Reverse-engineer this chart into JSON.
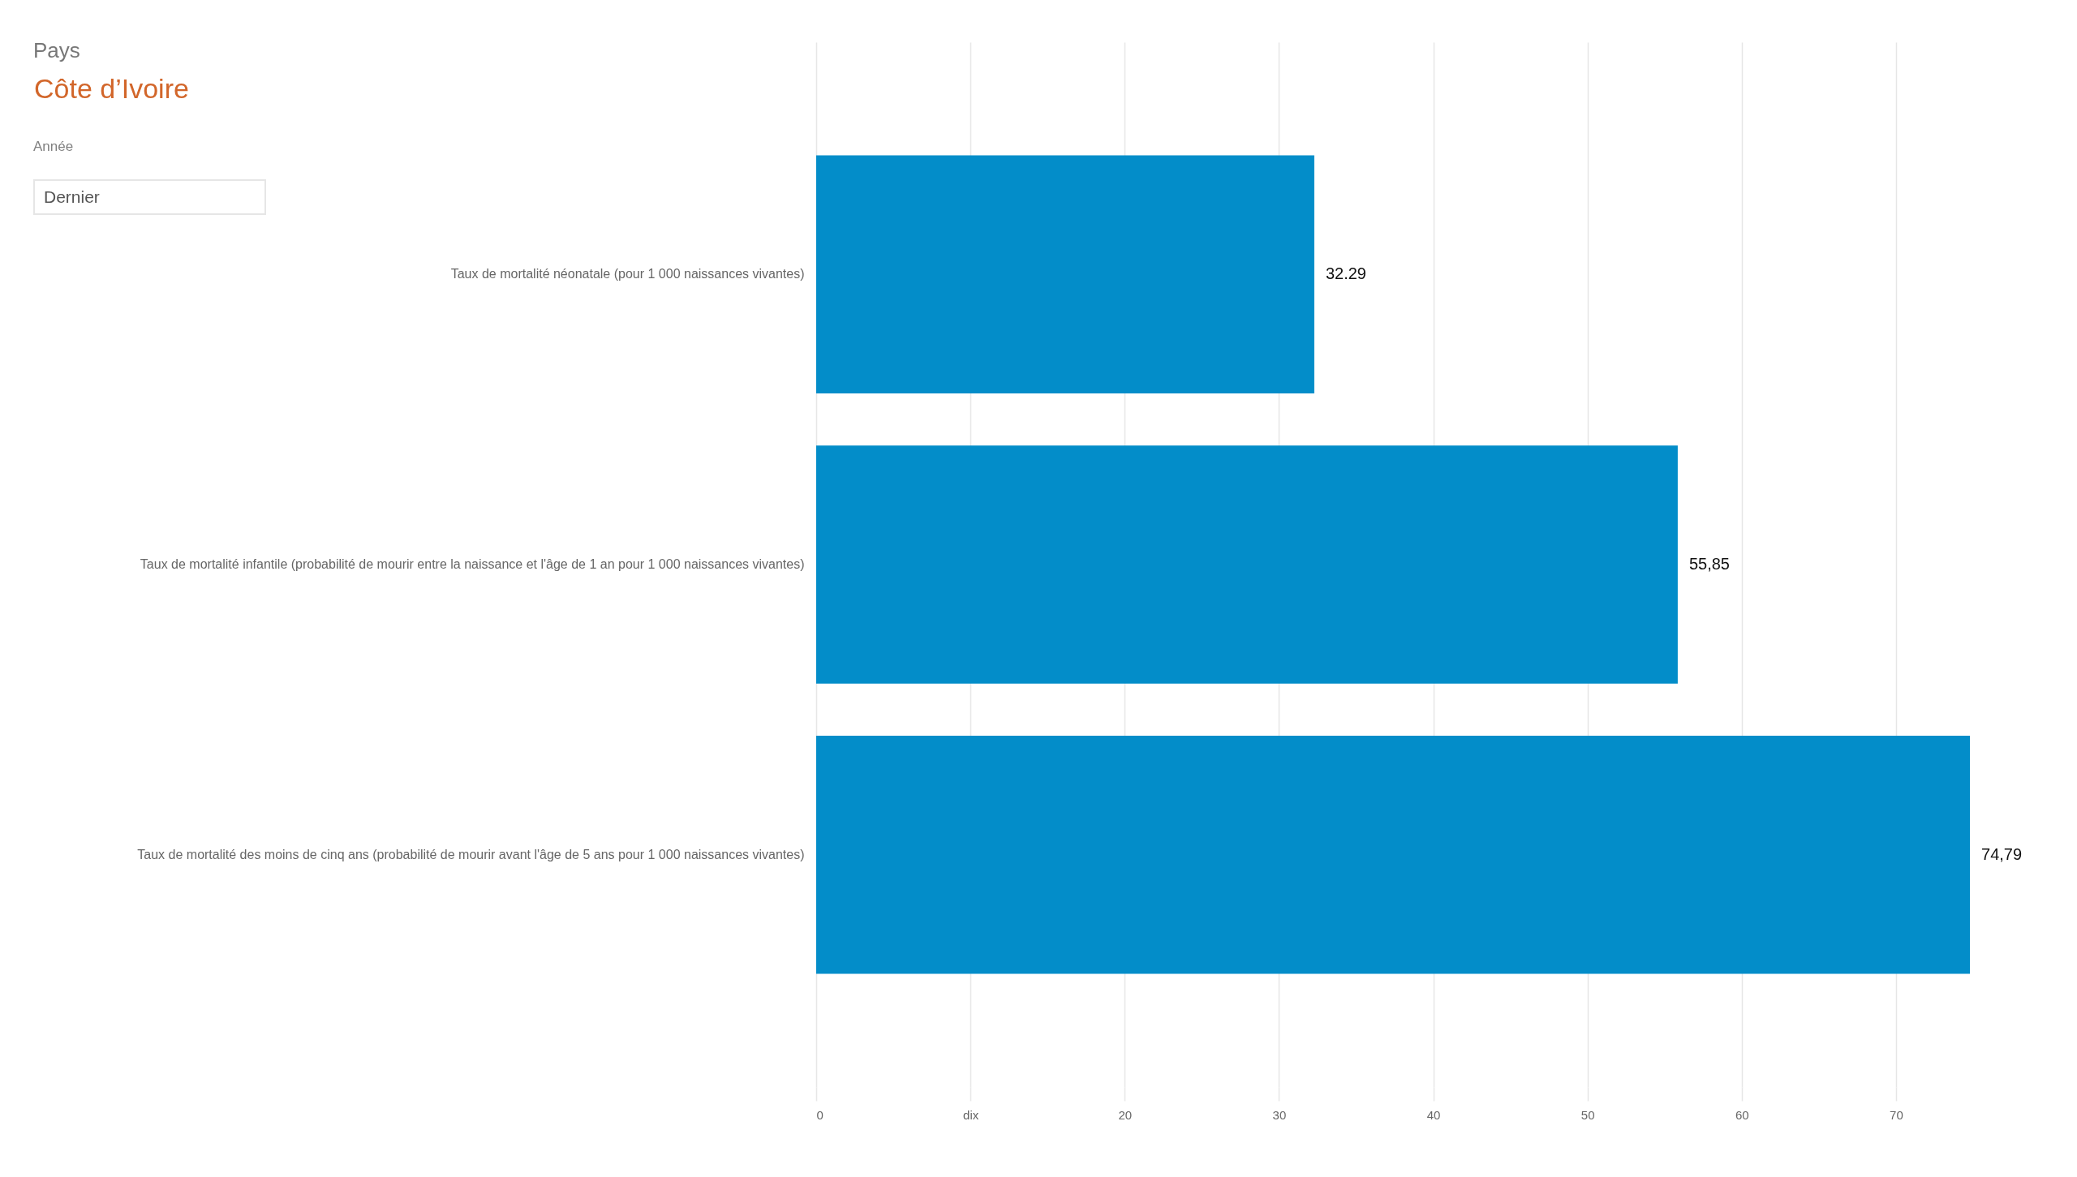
{
  "chart_data": {
    "type": "bar",
    "orientation": "horizontal",
    "categories": [
      "Taux de mortalité néonatale (pour 1 000 naissances vivantes)",
      "Taux de mortalité infantile (probabilité de mourir entre la naissance et l'âge de 1 an pour 1 000 naissances vivantes)",
      "Taux de mortalité des moins de cinq ans (probabilité de mourir avant l'âge de 5 ans pour 1 000 naissances vivantes)"
    ],
    "values": [
      32.29,
      55.85,
      74.79
    ],
    "value_labels": [
      "32.29",
      "55,85",
      "74,79"
    ],
    "color": "#038dc9",
    "xlim": [
      0,
      75
    ],
    "xticks": [
      0,
      {
        "value": 10,
        "label": "dix"
      },
      20,
      30,
      40,
      50,
      60,
      70
    ],
    "grid": "x",
    "annotations": [
      "Pays",
      "Côte d’Ivoire",
      "Année",
      "Dernier"
    ]
  }
}
